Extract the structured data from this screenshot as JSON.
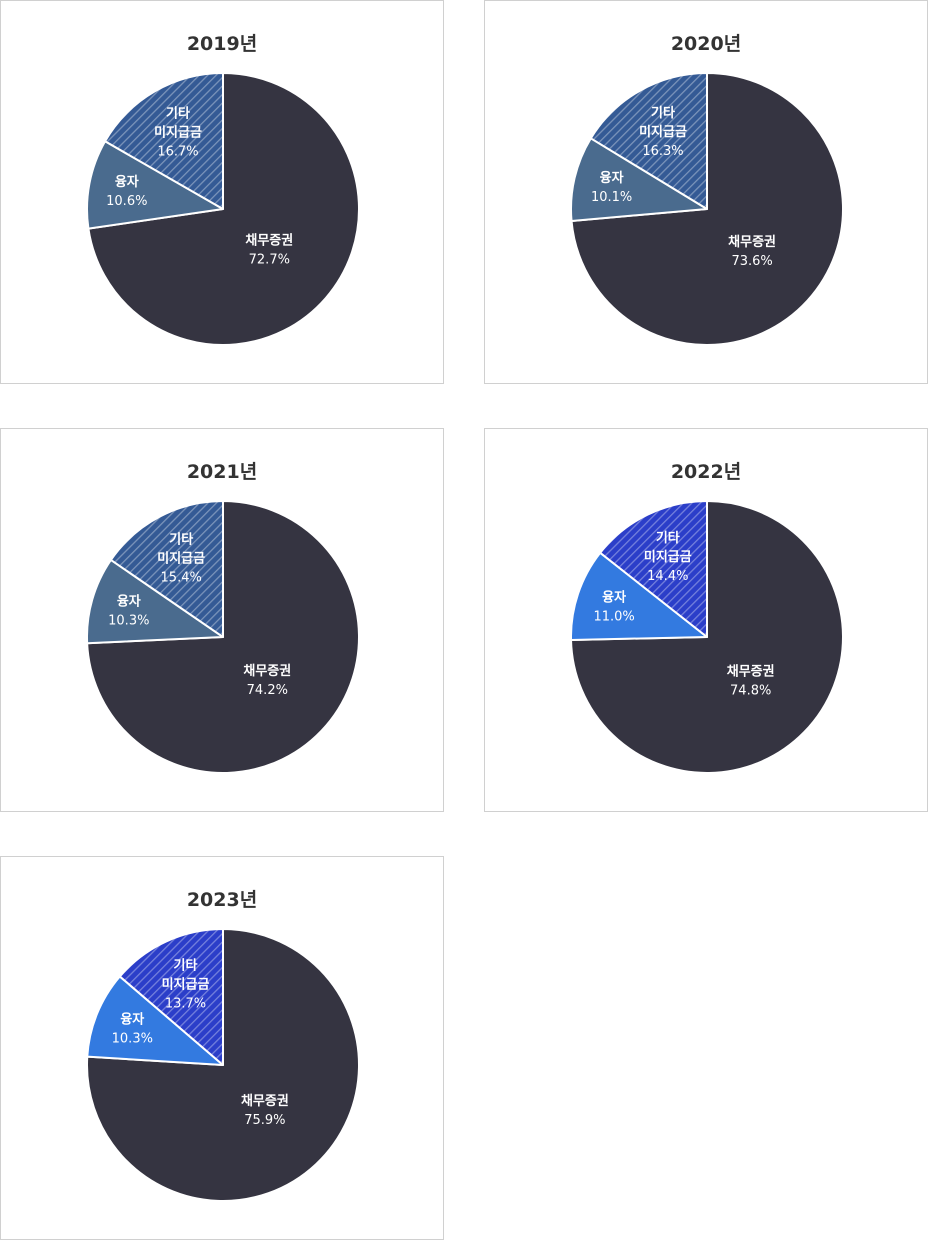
{
  "colors": {
    "bonds": "#353441",
    "loan_dark": "#4a6b8e",
    "other_dark": "#345a95",
    "loan_bright": "#337ae0",
    "other_bright": "#2b3ec9",
    "stroke": "#ffffff"
  },
  "chart_data": [
    {
      "type": "pie",
      "title": "2019년",
      "slices": [
        {
          "label": "채무증권",
          "value": 72.7,
          "value_label": "72.7%",
          "color": "#353441",
          "hatch": false
        },
        {
          "label": "융자",
          "value": 10.6,
          "value_label": "10.6%",
          "color": "#4a6b8e",
          "hatch": false
        },
        {
          "label_lines": [
            "기타",
            "미지급금"
          ],
          "value": 16.7,
          "value_label": "16.7%",
          "color": "#345a95",
          "hatch": true
        }
      ]
    },
    {
      "type": "pie",
      "title": "2020년",
      "slices": [
        {
          "label": "채무증권",
          "value": 73.6,
          "value_label": "73.6%",
          "color": "#353441",
          "hatch": false
        },
        {
          "label": "융자",
          "value": 10.1,
          "value_label": "10.1%",
          "color": "#4a6b8e",
          "hatch": false
        },
        {
          "label_lines": [
            "기타",
            "미지급금"
          ],
          "value": 16.3,
          "value_label": "16.3%",
          "color": "#345a95",
          "hatch": true
        }
      ]
    },
    {
      "type": "pie",
      "title": "2021년",
      "slices": [
        {
          "label": "채무증권",
          "value": 74.2,
          "value_label": "74.2%",
          "color": "#353441",
          "hatch": false
        },
        {
          "label": "융자",
          "value": 10.3,
          "value_label": "10.3%",
          "color": "#4a6b8e",
          "hatch": false
        },
        {
          "label_lines": [
            "기타",
            "미지급금"
          ],
          "value": 15.4,
          "value_label": "15.4%",
          "color": "#345a95",
          "hatch": true
        }
      ]
    },
    {
      "type": "pie",
      "title": "2022년",
      "slices": [
        {
          "label": "채무증권",
          "value": 74.8,
          "value_label": "74.8%",
          "color": "#353441",
          "hatch": false
        },
        {
          "label": "융자",
          "value": 11.0,
          "value_label": "11.0%",
          "color": "#337ae0",
          "hatch": false
        },
        {
          "label_lines": [
            "기타",
            "미지급금"
          ],
          "value": 14.4,
          "value_label": "14.4%",
          "color": "#2b3ec9",
          "hatch": true
        }
      ]
    },
    {
      "type": "pie",
      "title": "2023년",
      "slices": [
        {
          "label": "채무증권",
          "value": 75.9,
          "value_label": "75.9%",
          "color": "#353441",
          "hatch": false
        },
        {
          "label": "융자",
          "value": 10.3,
          "value_label": "10.3%",
          "color": "#337ae0",
          "hatch": false
        },
        {
          "label_lines": [
            "기타",
            "미지급금"
          ],
          "value": 13.7,
          "value_label": "13.7%",
          "color": "#2b3ec9",
          "hatch": true
        }
      ]
    }
  ]
}
